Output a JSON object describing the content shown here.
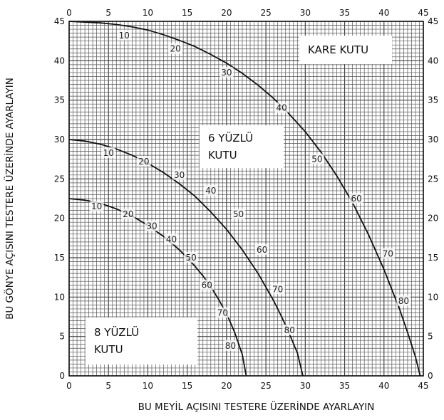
{
  "chart_data": {
    "type": "line",
    "xlabel": "BU MEYİL AÇISINI TESTERE ÜZERİNDE AYARLAYIN",
    "ylabel": "BU GÖNYE AÇISINI TESTERE ÜZERİNDE AYARLAYIN",
    "xlim": [
      0,
      45
    ],
    "ylim": [
      0,
      45
    ],
    "xticks": [
      "0",
      "5",
      "10",
      "15",
      "20",
      "25",
      "30",
      "35",
      "40",
      "45"
    ],
    "yticks": [
      "0",
      "5",
      "10",
      "15",
      "20",
      "25",
      "30",
      "35",
      "40",
      "45"
    ],
    "grid": true,
    "series": [
      {
        "name": "KARE KUTU",
        "points": [
          [
            0,
            45
          ],
          [
            2,
            44.9
          ],
          [
            4,
            44.8
          ],
          [
            6,
            44.6
          ],
          [
            8,
            44.3
          ],
          [
            10,
            43.9
          ],
          [
            12,
            43.3
          ],
          [
            14,
            42.6
          ],
          [
            16,
            41.8
          ],
          [
            18,
            40.8
          ],
          [
            20,
            39.7
          ],
          [
            22,
            38.4
          ],
          [
            24,
            36.9
          ],
          [
            26,
            35.2
          ],
          [
            28,
            33.2
          ],
          [
            30,
            31.0
          ],
          [
            32,
            28.4
          ],
          [
            34,
            25.4
          ],
          [
            36,
            22.0
          ],
          [
            38,
            18.0
          ],
          [
            40,
            13.5
          ],
          [
            42,
            8.4
          ],
          [
            43,
            5.5
          ],
          [
            44,
            2.4
          ],
          [
            44.6,
            0
          ]
        ],
        "labels": [
          {
            "text": "10",
            "x": 7,
            "y": 43.2
          },
          {
            "text": "20",
            "x": 13.5,
            "y": 41.5
          },
          {
            "text": "30",
            "x": 20,
            "y": 38.5
          },
          {
            "text": "40",
            "x": 27,
            "y": 34
          },
          {
            "text": "50",
            "x": 31.5,
            "y": 27.5
          },
          {
            "text": "60",
            "x": 36.5,
            "y": 22.5
          },
          {
            "text": "70",
            "x": 40.5,
            "y": 15.5
          },
          {
            "text": "80",
            "x": 42.5,
            "y": 9.5
          }
        ]
      },
      {
        "name": "6 YÜZLÜ KUTU",
        "points": [
          [
            0,
            30
          ],
          [
            2,
            29.8
          ],
          [
            4,
            29.4
          ],
          [
            6,
            28.8
          ],
          [
            8,
            28.0
          ],
          [
            10,
            27.0
          ],
          [
            12,
            25.8
          ],
          [
            14,
            24.4
          ],
          [
            16,
            22.8
          ],
          [
            18,
            20.8
          ],
          [
            20,
            18.6
          ],
          [
            22,
            16.0
          ],
          [
            24,
            13.0
          ],
          [
            26,
            9.5
          ],
          [
            27,
            7.5
          ],
          [
            28,
            5.3
          ],
          [
            29,
            2.9
          ],
          [
            29.7,
            0
          ]
        ],
        "labels": [
          {
            "text": "10",
            "x": 5,
            "y": 28.3
          },
          {
            "text": "20",
            "x": 9.5,
            "y": 27.2
          },
          {
            "text": "30",
            "x": 14,
            "y": 25.5
          },
          {
            "text": "40",
            "x": 18,
            "y": 23.5
          },
          {
            "text": "50",
            "x": 21.5,
            "y": 20.5
          },
          {
            "text": "60",
            "x": 24.5,
            "y": 16
          },
          {
            "text": "70",
            "x": 26.5,
            "y": 11
          },
          {
            "text": "80",
            "x": 28,
            "y": 5.8
          }
        ]
      },
      {
        "name": "8 YÜZLÜ KUTU",
        "points": [
          [
            0,
            22.5
          ],
          [
            2,
            22.3
          ],
          [
            4,
            21.9
          ],
          [
            6,
            21.2
          ],
          [
            8,
            20.3
          ],
          [
            10,
            19.1
          ],
          [
            12,
            17.7
          ],
          [
            14,
            16.0
          ],
          [
            15,
            15.0
          ],
          [
            16,
            13.9
          ],
          [
            17,
            12.7
          ],
          [
            18,
            11.3
          ],
          [
            19,
            9.7
          ],
          [
            20,
            7.9
          ],
          [
            21,
            5.6
          ],
          [
            22,
            2.7
          ],
          [
            22.5,
            0
          ]
        ],
        "labels": [
          {
            "text": "10",
            "x": 3.5,
            "y": 21.5
          },
          {
            "text": "20",
            "x": 7.5,
            "y": 20.5
          },
          {
            "text": "30",
            "x": 10.5,
            "y": 19
          },
          {
            "text": "40",
            "x": 13,
            "y": 17.3
          },
          {
            "text": "50",
            "x": 15.5,
            "y": 15
          },
          {
            "text": "60",
            "x": 17.5,
            "y": 11.5
          },
          {
            "text": "70",
            "x": 19.5,
            "y": 8
          },
          {
            "text": "80",
            "x": 20.5,
            "y": 3.8
          }
        ]
      }
    ],
    "boxes": [
      {
        "lines": [
          "KARE KUTU"
        ]
      },
      {
        "lines": [
          "6 YÜZLÜ",
          "KUTU"
        ]
      },
      {
        "lines": [
          "8 YÜZLÜ",
          "KUTU"
        ]
      }
    ]
  }
}
